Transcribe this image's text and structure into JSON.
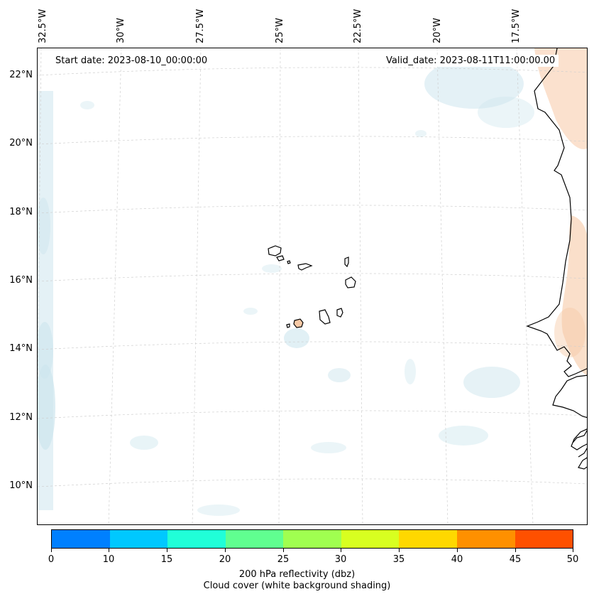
{
  "map": {
    "start_date": "Start date: 2023-08-10_00:00:00",
    "valid_date": "Valid_date: 2023-08-11T11:00:00.00",
    "lon_labels": [
      "32.5°W",
      "30°W",
      "27.5°W",
      "25°W",
      "22.5°W",
      "20°W",
      "17.5°W"
    ],
    "lat_labels": [
      "22°N",
      "20°N",
      "18°N",
      "16°N",
      "14°N",
      "12°N",
      "10°N"
    ],
    "colors": {
      "cloud_shading": "#cde6ee",
      "reflectivity_low": "#f7c9a6",
      "coastline": "#000000",
      "grid": "#cfcfcf"
    }
  },
  "colorbar": {
    "title": "200 hPa reflectivity (dbz)",
    "subtitle": "Cloud cover (white background shading)",
    "tick_labels": [
      "0",
      "10",
      "15",
      "20",
      "25",
      "30",
      "35",
      "40",
      "45",
      "50"
    ],
    "colors": [
      "#0080ff",
      "#00c8ff",
      "#20ffd8",
      "#60ff90",
      "#a0ff50",
      "#d8ff20",
      "#ffd800",
      "#ff9000",
      "#ff5000"
    ]
  }
}
